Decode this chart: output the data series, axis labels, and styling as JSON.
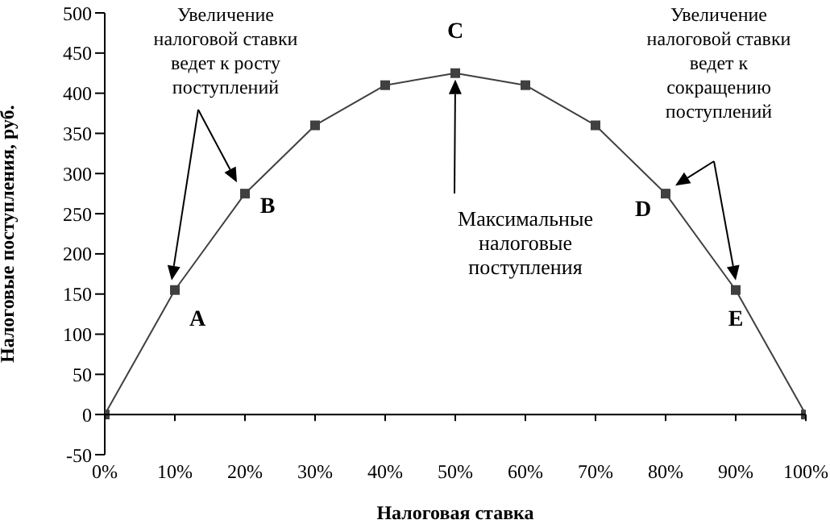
{
  "chart_data": {
    "type": "line",
    "xlabel": "Налоговая ставка",
    "ylabel": "Налоговые поступления, руб.",
    "x": [
      0,
      10,
      20,
      30,
      40,
      50,
      60,
      70,
      80,
      90,
      100
    ],
    "values": [
      0,
      155,
      275,
      360,
      410,
      425,
      410,
      360,
      275,
      155,
      0
    ],
    "color": "#404040",
    "marker": "square",
    "xlim": [
      0,
      100
    ],
    "xticks": [
      {
        "value": 0,
        "label": "0%"
      },
      {
        "value": 10,
        "label": "10%"
      },
      {
        "value": 20,
        "label": "20%"
      },
      {
        "value": 30,
        "label": "30%"
      },
      {
        "value": 40,
        "label": "40%"
      },
      {
        "value": 50,
        "label": "50%"
      },
      {
        "value": 60,
        "label": "60%"
      },
      {
        "value": 70,
        "label": "70%"
      },
      {
        "value": 80,
        "label": "80%"
      },
      {
        "value": 90,
        "label": "90%"
      },
      {
        "value": 100,
        "label": "100%"
      }
    ],
    "ylim": [
      -50,
      500
    ],
    "yticks": [
      -50,
      0,
      50,
      100,
      150,
      200,
      250,
      300,
      350,
      400,
      450,
      500
    ],
    "annotations": [
      {
        "text": "A",
        "x": 10,
        "y": 155
      },
      {
        "text": "B",
        "x": 20,
        "y": 275
      },
      {
        "text": "C",
        "x": 50,
        "y": 425
      },
      {
        "text": "D",
        "x": 80,
        "y": 275
      },
      {
        "text": "E",
        "x": 90,
        "y": 155
      },
      "Увеличение налоговой ставки ведет к росту поступлений",
      "Максимальные налоговые поступления",
      "Увеличение налоговой ставки ведет к сокращению поступлений"
    ]
  }
}
